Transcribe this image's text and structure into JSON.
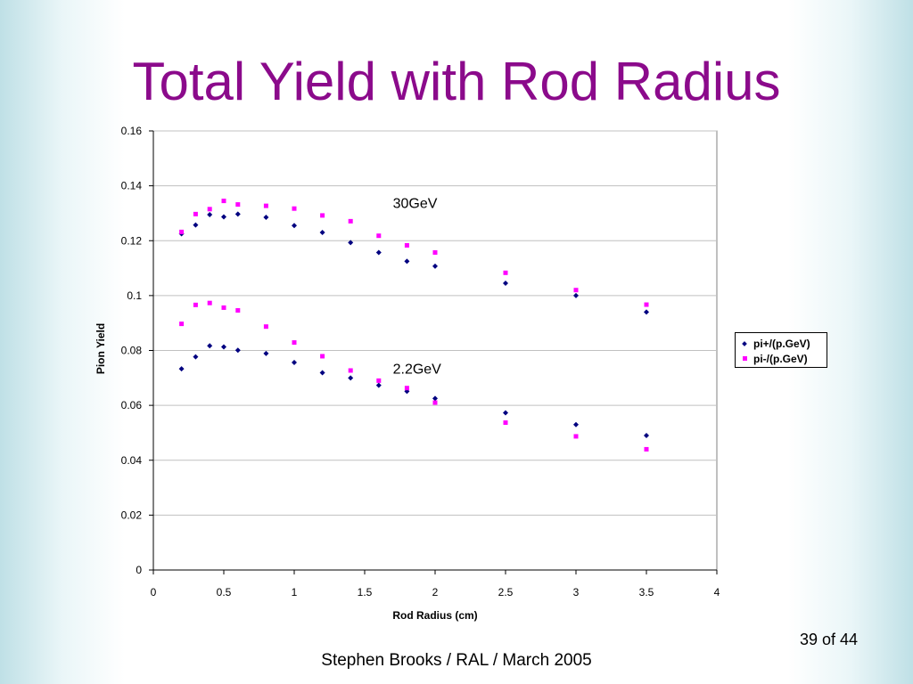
{
  "slide": {
    "title": "Total Yield with Rod Radius",
    "footer": "Stephen Brooks / RAL / March 2005",
    "page": "39 of 44"
  },
  "colors": {
    "title": "#8b0a8b",
    "pi_plus": "#000080",
    "pi_minus": "#ff00ff",
    "grid": "#c0c0c0"
  },
  "chart_data": {
    "type": "scatter",
    "title": "",
    "xlabel": "Rod Radius (cm)",
    "ylabel": "Pion Yield",
    "xlim": [
      0,
      4
    ],
    "ylim": [
      0,
      0.16
    ],
    "xticks": [
      "0",
      "0.5",
      "1",
      "1.5",
      "2",
      "2.5",
      "3",
      "3.5",
      "4"
    ],
    "yticks": [
      "0",
      "0.02",
      "0.04",
      "0.06",
      "0.08",
      "0.1",
      "0.12",
      "0.14",
      "0.16"
    ],
    "grid": "horizontal",
    "legend_position": "right",
    "annotations": [
      {
        "text": "30GeV",
        "x": 1.7,
        "y": 0.132
      },
      {
        "text": "2.2GeV",
        "x": 1.7,
        "y": 0.0715
      }
    ],
    "series": [
      {
        "name": "pi+/(p.GeV)",
        "marker": "diamond",
        "points": [
          [
            0.2,
            0.1225
          ],
          [
            0.3,
            0.1257
          ],
          [
            0.4,
            0.1295
          ],
          [
            0.5,
            0.1287
          ],
          [
            0.6,
            0.1297
          ],
          [
            0.8,
            0.1285
          ],
          [
            1.0,
            0.1255
          ],
          [
            1.2,
            0.123
          ],
          [
            1.4,
            0.1193
          ],
          [
            1.6,
            0.1157
          ],
          [
            1.8,
            0.1125
          ],
          [
            2.0,
            0.1107
          ],
          [
            2.5,
            0.1045
          ],
          [
            3.0,
            0.1
          ],
          [
            3.5,
            0.094
          ],
          [
            0.2,
            0.0733
          ],
          [
            0.3,
            0.0777
          ],
          [
            0.4,
            0.0817
          ],
          [
            0.5,
            0.0813
          ],
          [
            0.6,
            0.0801
          ],
          [
            0.8,
            0.0789
          ],
          [
            1.0,
            0.0756
          ],
          [
            1.2,
            0.0719
          ],
          [
            1.4,
            0.07
          ],
          [
            1.6,
            0.0673
          ],
          [
            1.8,
            0.0651
          ],
          [
            2.0,
            0.0625
          ],
          [
            2.5,
            0.0573
          ],
          [
            3.0,
            0.053
          ],
          [
            3.5,
            0.049
          ]
        ]
      },
      {
        "name": "pi-/(p.GeV)",
        "marker": "square",
        "points": [
          [
            0.2,
            0.1232
          ],
          [
            0.3,
            0.1297
          ],
          [
            0.4,
            0.1315
          ],
          [
            0.5,
            0.1345
          ],
          [
            0.6,
            0.1332
          ],
          [
            0.8,
            0.1327
          ],
          [
            1.0,
            0.1317
          ],
          [
            1.2,
            0.1292
          ],
          [
            1.4,
            0.1271
          ],
          [
            1.6,
            0.1218
          ],
          [
            1.8,
            0.1183
          ],
          [
            2.0,
            0.1157
          ],
          [
            2.5,
            0.1083
          ],
          [
            3.0,
            0.102
          ],
          [
            3.5,
            0.0967
          ],
          [
            0.2,
            0.0897
          ],
          [
            0.3,
            0.0966
          ],
          [
            0.4,
            0.0973
          ],
          [
            0.5,
            0.0956
          ],
          [
            0.6,
            0.0946
          ],
          [
            0.8,
            0.0887
          ],
          [
            1.0,
            0.0829
          ],
          [
            1.2,
            0.0779
          ],
          [
            1.4,
            0.0727
          ],
          [
            1.6,
            0.069
          ],
          [
            1.8,
            0.0663
          ],
          [
            2.0,
            0.061
          ],
          [
            2.5,
            0.0537
          ],
          [
            3.0,
            0.0487
          ],
          [
            3.5,
            0.044
          ]
        ]
      }
    ]
  }
}
